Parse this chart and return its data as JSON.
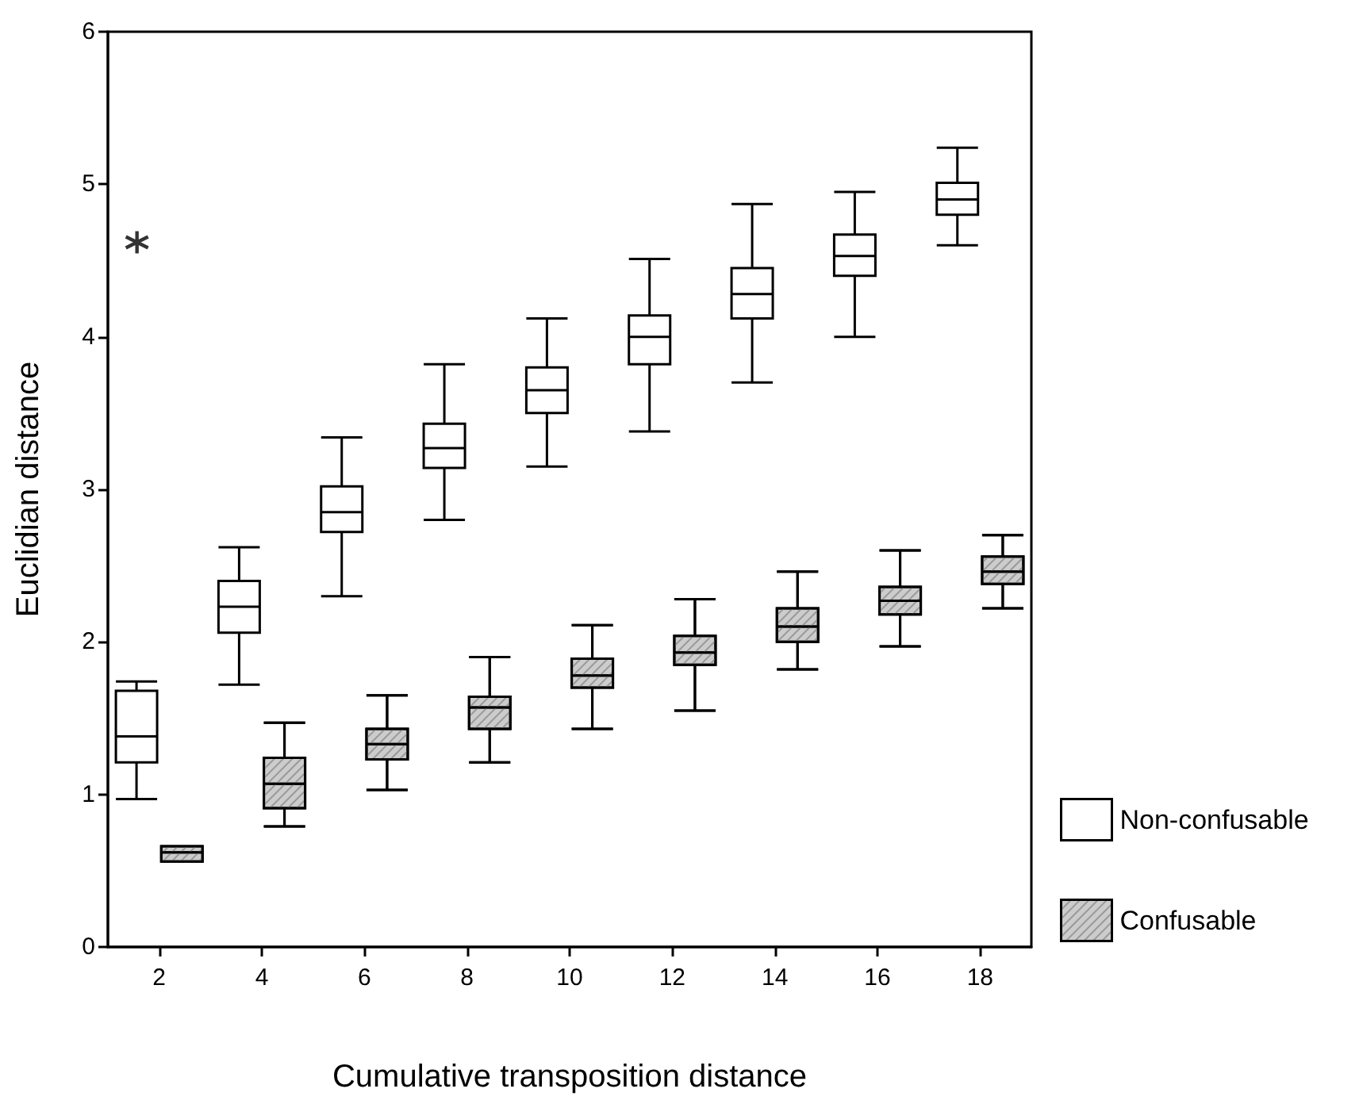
{
  "chart_data": {
    "type": "box",
    "xlabel": "Cumulative transposition distance",
    "ylabel": "Euclidian distance",
    "categories": [
      "2",
      "4",
      "6",
      "8",
      "10",
      "12",
      "14",
      "16",
      "18"
    ],
    "ylim": [
      0,
      6
    ],
    "yticks": [
      0,
      1,
      2,
      3,
      4,
      5,
      6
    ],
    "grid": false,
    "legend": "bottom right",
    "series": [
      {
        "name": "Non-confusable",
        "color": "#ffffff",
        "boxes": [
          {
            "low": 0.97,
            "q1": 1.21,
            "median": 1.38,
            "q3": 1.68,
            "high": 1.74,
            "outliers": [
              4.62
            ]
          },
          {
            "low": 1.72,
            "q1": 2.06,
            "median": 2.23,
            "q3": 2.4,
            "high": 2.62
          },
          {
            "low": 2.3,
            "q1": 2.72,
            "median": 2.85,
            "q3": 3.02,
            "high": 3.34
          },
          {
            "low": 2.8,
            "q1": 3.14,
            "median": 3.27,
            "q3": 3.43,
            "high": 3.82
          },
          {
            "low": 3.15,
            "q1": 3.5,
            "median": 3.65,
            "q3": 3.8,
            "high": 4.12
          },
          {
            "low": 3.38,
            "q1": 3.82,
            "median": 4.0,
            "q3": 4.14,
            "high": 4.51
          },
          {
            "low": 3.7,
            "q1": 4.12,
            "median": 4.28,
            "q3": 4.45,
            "high": 4.87
          },
          {
            "low": 4.0,
            "q1": 4.4,
            "median": 4.53,
            "q3": 4.67,
            "high": 4.95
          },
          {
            "low": 4.6,
            "q1": 4.8,
            "median": 4.9,
            "q3": 5.01,
            "high": 5.24
          }
        ]
      },
      {
        "name": "Confusable",
        "color": "#cccccc",
        "boxes": [
          {
            "low": 0.56,
            "q1": 0.56,
            "median": 0.62,
            "q3": 0.66,
            "high": 0.66
          },
          {
            "low": 0.79,
            "q1": 0.91,
            "median": 1.07,
            "q3": 1.24,
            "high": 1.47
          },
          {
            "low": 1.03,
            "q1": 1.23,
            "median": 1.33,
            "q3": 1.43,
            "high": 1.65
          },
          {
            "low": 1.21,
            "q1": 1.43,
            "median": 1.57,
            "q3": 1.64,
            "high": 1.9
          },
          {
            "low": 1.43,
            "q1": 1.7,
            "median": 1.78,
            "q3": 1.89,
            "high": 2.11
          },
          {
            "low": 1.55,
            "q1": 1.85,
            "median": 1.93,
            "q3": 2.04,
            "high": 2.28
          },
          {
            "low": 1.82,
            "q1": 2.0,
            "median": 2.1,
            "q3": 2.22,
            "high": 2.46
          },
          {
            "low": 1.97,
            "q1": 2.18,
            "median": 2.27,
            "q3": 2.36,
            "high": 2.6
          },
          {
            "low": 2.22,
            "q1": 2.38,
            "median": 2.46,
            "q3": 2.56,
            "high": 2.7
          }
        ]
      }
    ]
  }
}
